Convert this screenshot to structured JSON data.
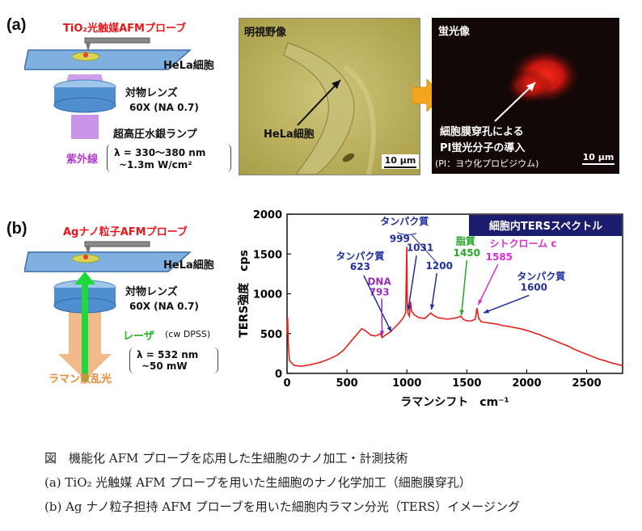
{
  "panel_a": {
    "label": "(a)",
    "probe_label": "TiO₂光触媒AFMプローブ",
    "cell_label": "HeLa細胞",
    "lens_label": "対物レンズ",
    "lens_spec": "60X (NA 0.7)",
    "lamp_label": "超高圧水銀ランプ",
    "light_label": "紫外線",
    "wavelength": "λ = 330〜380 nm",
    "power": "~1.3m W/cm²",
    "brightfield_title": "明視野像",
    "brightfield_cell": "HeLa細胞",
    "scale": "10 μm",
    "fluor_title": "蛍光像",
    "fluor_line1": "細胞膜穿孔による",
    "fluor_line2": "PI蛍光分子の導入",
    "fluor_line3": "(PI：ヨウ化プロピジウム)",
    "fluor_scale": "10 μm"
  },
  "panel_b": {
    "label": "(b)",
    "probe_label": "Agナノ粒子AFMプローブ",
    "cell_label": "HeLa細胞",
    "lens_label": "対物レンズ",
    "lens_spec": "60X (NA 0.7)",
    "laser_label": "レーザ",
    "laser_type": "(cw DPSS)",
    "raman_label": "ラマン散乱光",
    "wavelength": "λ = 532 nm",
    "power": "~50 mW"
  },
  "caption": {
    "line1": "図　機能化 AFM プローブを応用した生細胞のナノ加工・計測技術",
    "line2": "(a) TiO₂ 光触媒 AFM プローブを用いた生細胞のナノ化学加工（細胞膜穿孔）",
    "line3": "(b) Ag ナノ粒子担持 AFM プローブを用いた細胞内ラマン分光（TERS）イメージング"
  },
  "chart_data": {
    "type": "line",
    "title": "細胞内TERSスペクトル",
    "xlabel": "ラマンシフト　cm⁻¹",
    "ylabel": "TERS強度　cps",
    "xlim": [
      0,
      2800
    ],
    "ylim": [
      0,
      2000
    ],
    "xticks": [
      0,
      500,
      1000,
      1500,
      2000,
      2500
    ],
    "yticks": [
      0,
      500,
      1000,
      1500,
      2000
    ],
    "series": [
      {
        "color": "#e3221c",
        "x": [
          0,
          5,
          10,
          20,
          60,
          120,
          200,
          280,
          350,
          420,
          470,
          520,
          560,
          600,
          623,
          650,
          700,
          740,
          780,
          793,
          820,
          860,
          900,
          940,
          970,
          990,
          999,
          1003,
          1008,
          1020,
          1031,
          1040,
          1060,
          1100,
          1150,
          1200,
          1220,
          1260,
          1300,
          1340,
          1380,
          1420,
          1450,
          1470,
          1500,
          1540,
          1570,
          1585,
          1600,
          1620,
          1660,
          1700,
          1750,
          1800,
          1850,
          1900,
          1950,
          2000,
          2050,
          2100,
          2150,
          2200,
          2250,
          2300,
          2350,
          2400,
          2450,
          2500,
          2550,
          2600,
          2650,
          2700,
          2750,
          2800
        ],
        "y": [
          500,
          700,
          380,
          160,
          100,
          90,
          110,
          140,
          180,
          230,
          290,
          380,
          450,
          520,
          560,
          540,
          480,
          470,
          500,
          450,
          480,
          520,
          580,
          640,
          700,
          760,
          1590,
          900,
          760,
          720,
          900,
          780,
          740,
          700,
          690,
          760,
          730,
          700,
          690,
          680,
          690,
          700,
          720,
          680,
          660,
          660,
          680,
          820,
          690,
          650,
          640,
          630,
          620,
          600,
          590,
          575,
          560,
          540,
          515,
          490,
          460,
          430,
          400,
          370,
          340,
          300,
          270,
          240,
          210,
          180,
          160,
          135,
          115,
          100
        ]
      }
    ],
    "annotations": [
      {
        "text": "タンパク質",
        "x": 980,
        "y": 1870,
        "color": "#1f2f9c"
      },
      {
        "text": "999",
        "x": 940,
        "y": 1650,
        "color": "#1f2f9c"
      },
      {
        "text": "1031",
        "x": 1110,
        "y": 1540,
        "color": "#1f2f9c"
      },
      {
        "text": "1200",
        "x": 1270,
        "y": 1310,
        "color": "#1f2f9c"
      },
      {
        "text": "タンパク質",
        "x": 610,
        "y": 1430,
        "color": "#1f2f9c"
      },
      {
        "text": "623",
        "x": 610,
        "y": 1300,
        "color": "#1f2f9c"
      },
      {
        "text": "DNA",
        "x": 770,
        "y": 1110,
        "color": "#9b2fb5"
      },
      {
        "text": "793",
        "x": 770,
        "y": 980,
        "color": "#9b2fb5"
      },
      {
        "text": "脂質",
        "x": 1490,
        "y": 1620,
        "color": "#28a52a"
      },
      {
        "text": "1450",
        "x": 1500,
        "y": 1470,
        "color": "#28a52a"
      },
      {
        "text": "シトクローム c",
        "x": 1970,
        "y": 1590,
        "color": "#d92ed0"
      },
      {
        "text": "1585",
        "x": 1770,
        "y": 1420,
        "color": "#d92ed0"
      },
      {
        "text": "タンパク質",
        "x": 2120,
        "y": 1180,
        "color": "#1f2f9c"
      },
      {
        "text": "1600",
        "x": 2060,
        "y": 1040,
        "color": "#1f2f9c"
      }
    ]
  }
}
